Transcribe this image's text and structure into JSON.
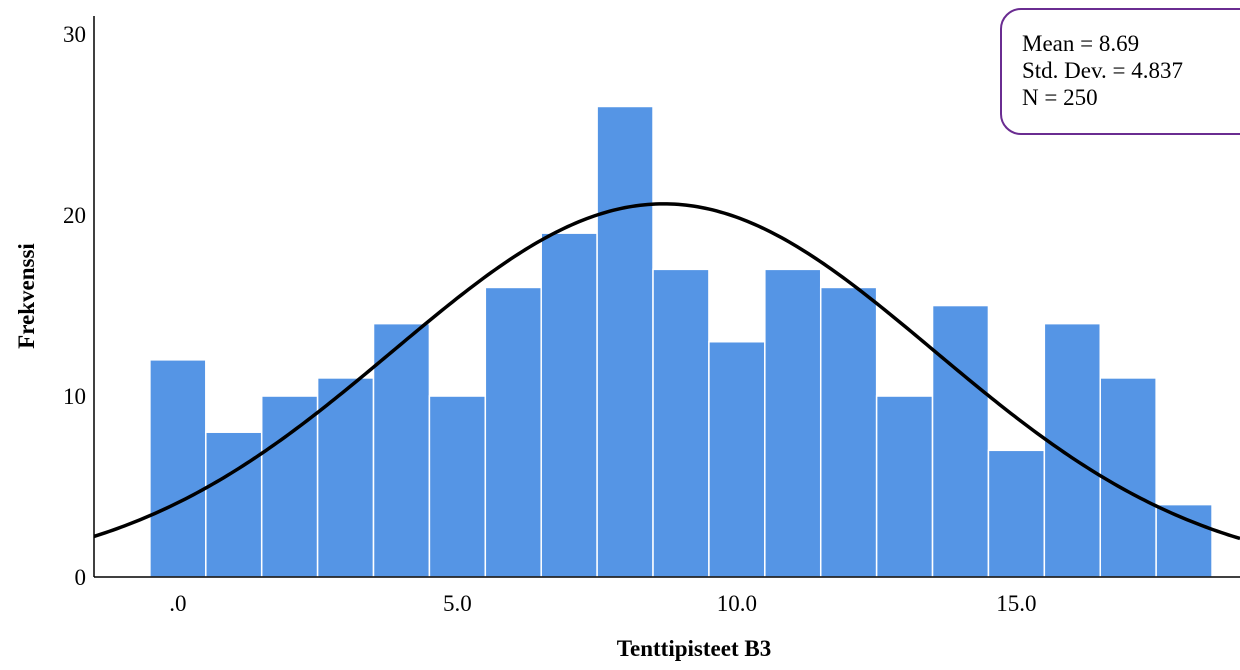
{
  "chart_data": {
    "type": "bar",
    "subtype": "histogram",
    "xlabel": "Tenttipisteet B3",
    "ylabel": "Frekvenssi",
    "xlim": [
      -1.5,
      19.0
    ],
    "ylim": [
      0,
      31
    ],
    "x_ticks": [
      0,
      5,
      10,
      15
    ],
    "x_tick_labels": [
      ".0",
      "5.0",
      "10.0",
      "15.0"
    ],
    "y_ticks": [
      0,
      10,
      20,
      30
    ],
    "y_tick_labels": [
      "0",
      "10",
      "20",
      "30"
    ],
    "bin_width": 1,
    "bins": [
      {
        "start": -0.5,
        "end": 0.5,
        "count": 12
      },
      {
        "start": 0.5,
        "end": 1.5,
        "count": 8
      },
      {
        "start": 1.5,
        "end": 2.5,
        "count": 10
      },
      {
        "start": 2.5,
        "end": 3.5,
        "count": 11
      },
      {
        "start": 3.5,
        "end": 4.5,
        "count": 14
      },
      {
        "start": 4.5,
        "end": 5.5,
        "count": 10
      },
      {
        "start": 5.5,
        "end": 6.5,
        "count": 16
      },
      {
        "start": 6.5,
        "end": 7.5,
        "count": 19
      },
      {
        "start": 7.5,
        "end": 8.5,
        "count": 26
      },
      {
        "start": 8.5,
        "end": 9.5,
        "count": 17
      },
      {
        "start": 9.5,
        "end": 10.5,
        "count": 13
      },
      {
        "start": 10.5,
        "end": 11.5,
        "count": 17
      },
      {
        "start": 11.5,
        "end": 12.5,
        "count": 16
      },
      {
        "start": 12.5,
        "end": 13.5,
        "count": 10
      },
      {
        "start": 13.5,
        "end": 14.5,
        "count": 15
      },
      {
        "start": 14.5,
        "end": 15.5,
        "count": 7
      },
      {
        "start": 15.5,
        "end": 16.5,
        "count": 14
      },
      {
        "start": 16.5,
        "end": 17.5,
        "count": 11
      },
      {
        "start": 17.5,
        "end": 18.5,
        "count": 4
      }
    ],
    "normal_curve": {
      "mean": 8.69,
      "std": 4.837,
      "n": 250
    },
    "stats_box": {
      "position": "top-right",
      "lines": [
        "Mean = 8.69",
        "Std. Dev. = 4.837",
        "N = 250"
      ]
    },
    "grid": false,
    "colors": {
      "bar_fill": "#5595e5",
      "bar_edge": "#ffffff",
      "curve": "#000000",
      "stats_border": "#6a2c91",
      "axis": "#000000"
    }
  }
}
